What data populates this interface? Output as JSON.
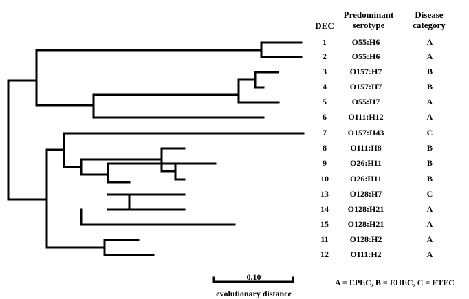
{
  "headers": {
    "dec": "DEC",
    "serotype": "Predominant serotype",
    "category": "Disease category"
  },
  "leaves": [
    {
      "dec": "1",
      "serotype": "O55:H6",
      "category": "A"
    },
    {
      "dec": "2",
      "serotype": "O55:H6",
      "category": "A"
    },
    {
      "dec": "3",
      "serotype": "O157:H7",
      "category": "B"
    },
    {
      "dec": "4",
      "serotype": "O157:H7",
      "category": "B"
    },
    {
      "dec": "5",
      "serotype": "O55:H7",
      "category": "A"
    },
    {
      "dec": "6",
      "serotype": "O111:H12",
      "category": "A"
    },
    {
      "dec": "7",
      "serotype": "O157:H43",
      "category": "C"
    },
    {
      "dec": "8",
      "serotype": "O111:H8",
      "category": "B"
    },
    {
      "dec": "9",
      "serotype": "O26:H11",
      "category": "B"
    },
    {
      "dec": "10",
      "serotype": "O26:H11",
      "category": "B"
    },
    {
      "dec": "13",
      "serotype": "O128:H7",
      "category": "C"
    },
    {
      "dec": "14",
      "serotype": "O128:H21",
      "category": "A"
    },
    {
      "dec": "15",
      "serotype": "O128:H21",
      "category": "A"
    },
    {
      "dec": "11",
      "serotype": "O128:H2",
      "category": "A"
    },
    {
      "dec": "12",
      "serotype": "O111:H2",
      "category": "A"
    }
  ],
  "scale_bar": {
    "value_label": "0.10",
    "caption": "evolutionary distance"
  },
  "legend": "A = EPEC, B = EHEC, C = ETEC"
}
